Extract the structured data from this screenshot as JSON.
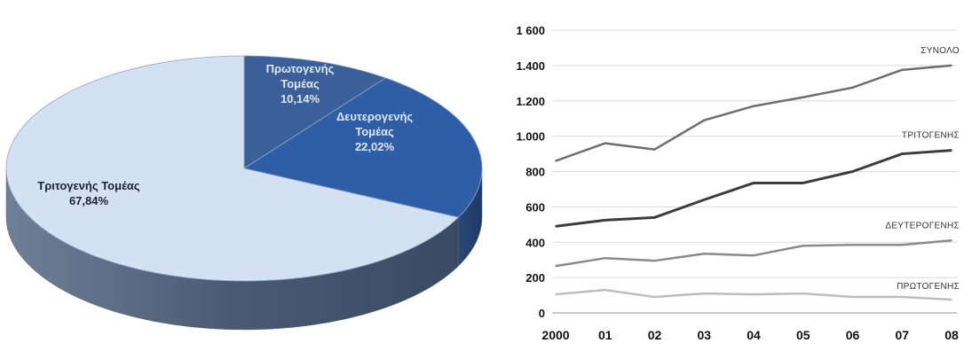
{
  "chart_data": [
    {
      "type": "pie",
      "style": "3d",
      "slices": [
        {
          "label": "Πρωτογενής Τομέας",
          "percent_text": "10,14%",
          "value": 10.14,
          "color": "#3a5f99"
        },
        {
          "label": "Δευτερογενής Τομέας",
          "percent_text": "22,02%",
          "value": 22.02,
          "color": "#2f5ea6"
        },
        {
          "label": "Τριτογενής Τομέας",
          "percent_text": "67,84%",
          "value": 67.84,
          "color": "#d4e1f2"
        }
      ]
    },
    {
      "type": "line",
      "categories": [
        "2000",
        "01",
        "02",
        "03",
        "04",
        "05",
        "06",
        "07",
        "08"
      ],
      "ylim": [
        0,
        1600
      ],
      "yticks": [
        0,
        200,
        400,
        600,
        800,
        1000,
        1200,
        1400,
        1600
      ],
      "ytick_labels": [
        "0",
        "200",
        "400",
        "600",
        "800",
        "1.000",
        "1.200",
        "1.400",
        "1 600"
      ],
      "grid": true,
      "series": [
        {
          "name": "ΣΥΝΟΛΟ",
          "color": "#6e6e6e",
          "values": [
            860,
            960,
            925,
            1090,
            1170,
            1220,
            1275,
            1375,
            1400
          ]
        },
        {
          "name": "ΤΡΙΤΟΓΕΝΗΣ",
          "color": "#3c3c3c",
          "values": [
            490,
            525,
            540,
            640,
            735,
            735,
            800,
            900,
            920
          ]
        },
        {
          "name": "ΔΕΥΤΕΡΟΓΕΝΗΣ",
          "color": "#8a8a8a",
          "values": [
            265,
            310,
            295,
            335,
            325,
            380,
            385,
            385,
            410
          ]
        },
        {
          "name": "ΠΡΩΤΟΓΕΝΗΣ",
          "color": "#bdbdbd",
          "values": [
            105,
            130,
            90,
            110,
            105,
            110,
            90,
            90,
            75
          ]
        }
      ]
    }
  ]
}
